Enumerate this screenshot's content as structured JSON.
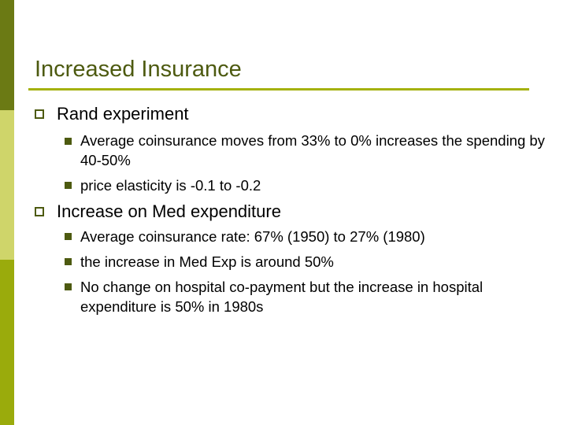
{
  "slide": {
    "title": "Increased Insurance",
    "sections": [
      {
        "heading": "Rand experiment",
        "points": [
          "Average coinsurance moves from 33% to 0% increases the spending by 40-50%",
          "price elasticity is -0.1 to -0.2"
        ]
      },
      {
        "heading": "Increase on Med expenditure",
        "points": [
          "Average coinsurance rate: 67% (1950) to 27% (1980)",
          "the increase in Med Exp is around 50%",
          "No change on hospital co-payment but the increase in hospital expenditure is 50% in 1980s"
        ]
      }
    ]
  },
  "colors": {
    "sidebar_top": "#6b7a14",
    "sidebar_middle": "#cfd56a",
    "sidebar_bottom": "#9aab0c",
    "title_text": "#4d5a10",
    "title_rule": "#a4b10d"
  }
}
